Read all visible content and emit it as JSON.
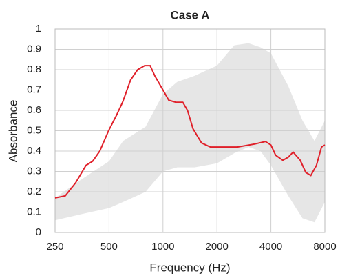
{
  "chart_data": {
    "type": "line",
    "title": "Case A",
    "x_label": "Frequency (Hz)",
    "y_label": "Absorbance",
    "x": [
      250,
      285,
      326,
      372,
      405,
      444,
      497,
      553,
      595,
      660,
      722,
      790,
      848,
      900,
      985,
      1077,
      1180,
      1290,
      1370,
      1470,
      1640,
      1840,
      2300,
      2600,
      3260,
      3730,
      4000,
      4250,
      4660,
      5000,
      5320,
      5830,
      6260,
      6680,
      7180,
      7660,
      8000
    ],
    "values": [
      0.17,
      0.18,
      0.245,
      0.33,
      0.35,
      0.4,
      0.5,
      0.58,
      0.64,
      0.75,
      0.8,
      0.82,
      0.82,
      0.77,
      0.71,
      0.65,
      0.64,
      0.64,
      0.6,
      0.51,
      0.44,
      0.42,
      0.42,
      0.42,
      0.435,
      0.447,
      0.43,
      0.38,
      0.355,
      0.37,
      0.395,
      0.355,
      0.295,
      0.28,
      0.33,
      0.42,
      0.43
    ],
    "color": "#e0202a",
    "band": {
      "x": [
        250,
        350,
        500,
        600,
        800,
        1000,
        1200,
        1500,
        2000,
        2500,
        3000,
        3500,
        4000,
        5000,
        6000,
        7000,
        8000
      ],
      "lower": [
        0.06,
        0.09,
        0.12,
        0.15,
        0.2,
        0.3,
        0.32,
        0.32,
        0.34,
        0.39,
        0.42,
        0.4,
        0.33,
        0.18,
        0.07,
        0.05,
        0.15
      ],
      "upper": [
        0.17,
        0.26,
        0.35,
        0.45,
        0.52,
        0.68,
        0.74,
        0.77,
        0.82,
        0.92,
        0.93,
        0.91,
        0.88,
        0.72,
        0.55,
        0.45,
        0.55
      ],
      "color": "#e6e6e6"
    },
    "xlim": [
      250,
      8000
    ],
    "xticks": [
      250,
      500,
      1000,
      2000,
      4000,
      8000
    ],
    "x_log": true,
    "ylim": [
      0,
      1
    ],
    "yticks": [
      0,
      0.1,
      0.2,
      0.3,
      0.4,
      0.5,
      0.6,
      0.7,
      0.8,
      0.9,
      1
    ],
    "grid": true
  }
}
